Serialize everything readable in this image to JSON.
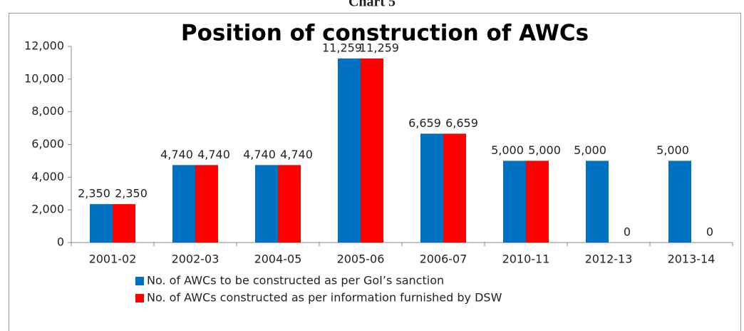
{
  "page_header": "Chart 5",
  "chart_data": {
    "type": "bar",
    "title": "Position of construction of AWCs",
    "categories": [
      "2001-02",
      "2002-03",
      "2004-05",
      "2005-06",
      "2006-07",
      "2010-11",
      "2012-13",
      "2013-14"
    ],
    "series": [
      {
        "name": "No. of AWCs to be constructed as per GoI’s sanction",
        "color": "#0070c0",
        "values": [
          2350,
          4740,
          4740,
          11259,
          6659,
          5000,
          5000,
          5000
        ],
        "value_labels": [
          "2,350",
          "4,740",
          "4,740",
          "11,259",
          "6,659",
          "5,000",
          "5,000",
          "5,000"
        ]
      },
      {
        "name": "No. of AWCs constructed as per information furnished by DSW",
        "color": "#ff0000",
        "values": [
          2350,
          4740,
          4740,
          11259,
          6659,
          5000,
          0,
          0
        ],
        "value_labels": [
          "2,350",
          "4,740",
          "4,740",
          "11,259",
          "6,659",
          "5,000",
          "0",
          "0"
        ]
      }
    ],
    "ylim": [
      0,
      12000
    ],
    "yticks": [
      0,
      {
        "value": 2000,
        "label": "2,000"
      },
      {
        "value": 4000,
        "label": "4,000"
      },
      {
        "value": 6000,
        "label": "6,000"
      },
      {
        "value": 8000,
        "label": "8,000"
      },
      {
        "value": 10000,
        "label": "10,000"
      },
      {
        "value": 12000,
        "label": "12,000"
      }
    ],
    "legend": "bottom"
  }
}
